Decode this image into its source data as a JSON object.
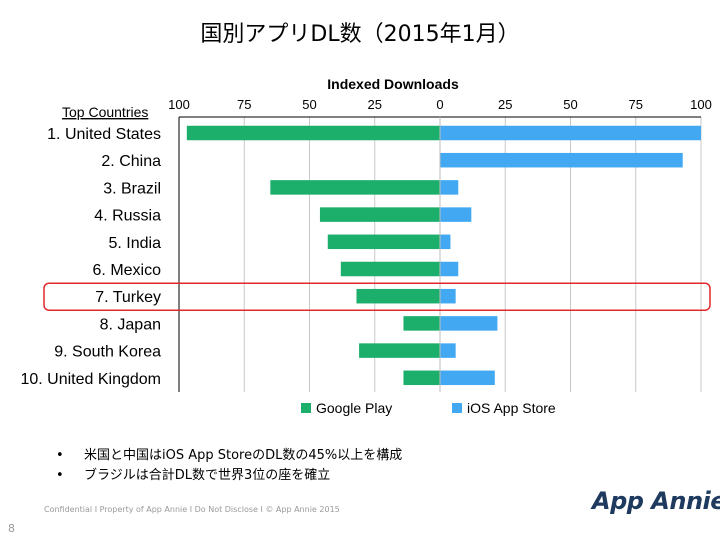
{
  "title": "国別アプリDL数（2015年1月）",
  "chart_data": {
    "type": "bar",
    "orientation": "horizontal",
    "layout": "diverging",
    "title": "Indexed Downloads",
    "category_header": "Top Countries",
    "categories": [
      "1. United States",
      "2. China",
      "3. Brazil",
      "4. Russia",
      "5. India",
      "6. Mexico",
      "7. Turkey",
      "8. Japan",
      "9. South Korea",
      "10. United Kingdom"
    ],
    "series": [
      {
        "name": "Google Play",
        "direction": "left",
        "color": "#1cae6b",
        "values": [
          97,
          0,
          65,
          46,
          43,
          38,
          32,
          14,
          31,
          14
        ]
      },
      {
        "name": "iOS App Store",
        "direction": "right",
        "color": "#42a8f2",
        "values": [
          100,
          93,
          7,
          12,
          4,
          7,
          6,
          22,
          6,
          21
        ]
      }
    ],
    "xlim": [
      -100,
      100
    ],
    "tick_values": [
      -100,
      -75,
      -50,
      -25,
      0,
      25,
      50,
      75,
      100
    ],
    "tick_labels": [
      "100",
      "75",
      "50",
      "25",
      "0",
      "25",
      "50",
      "75",
      "100"
    ],
    "grid": true,
    "legend_position": "bottom",
    "highlight_category": "7. Turkey",
    "highlight_color": "#e0282d"
  },
  "bullets": [
    "米国と中国はiOS App StoreのDL数の45%以上を構成",
    "ブラジルは合計DL数で世界3位の座を確立"
  ],
  "footer": "Confidential  I  Property of App Annie  I  Do Not Disclose  I  © App Annie 2015",
  "page_number": "8",
  "logo_text": "App Annie"
}
